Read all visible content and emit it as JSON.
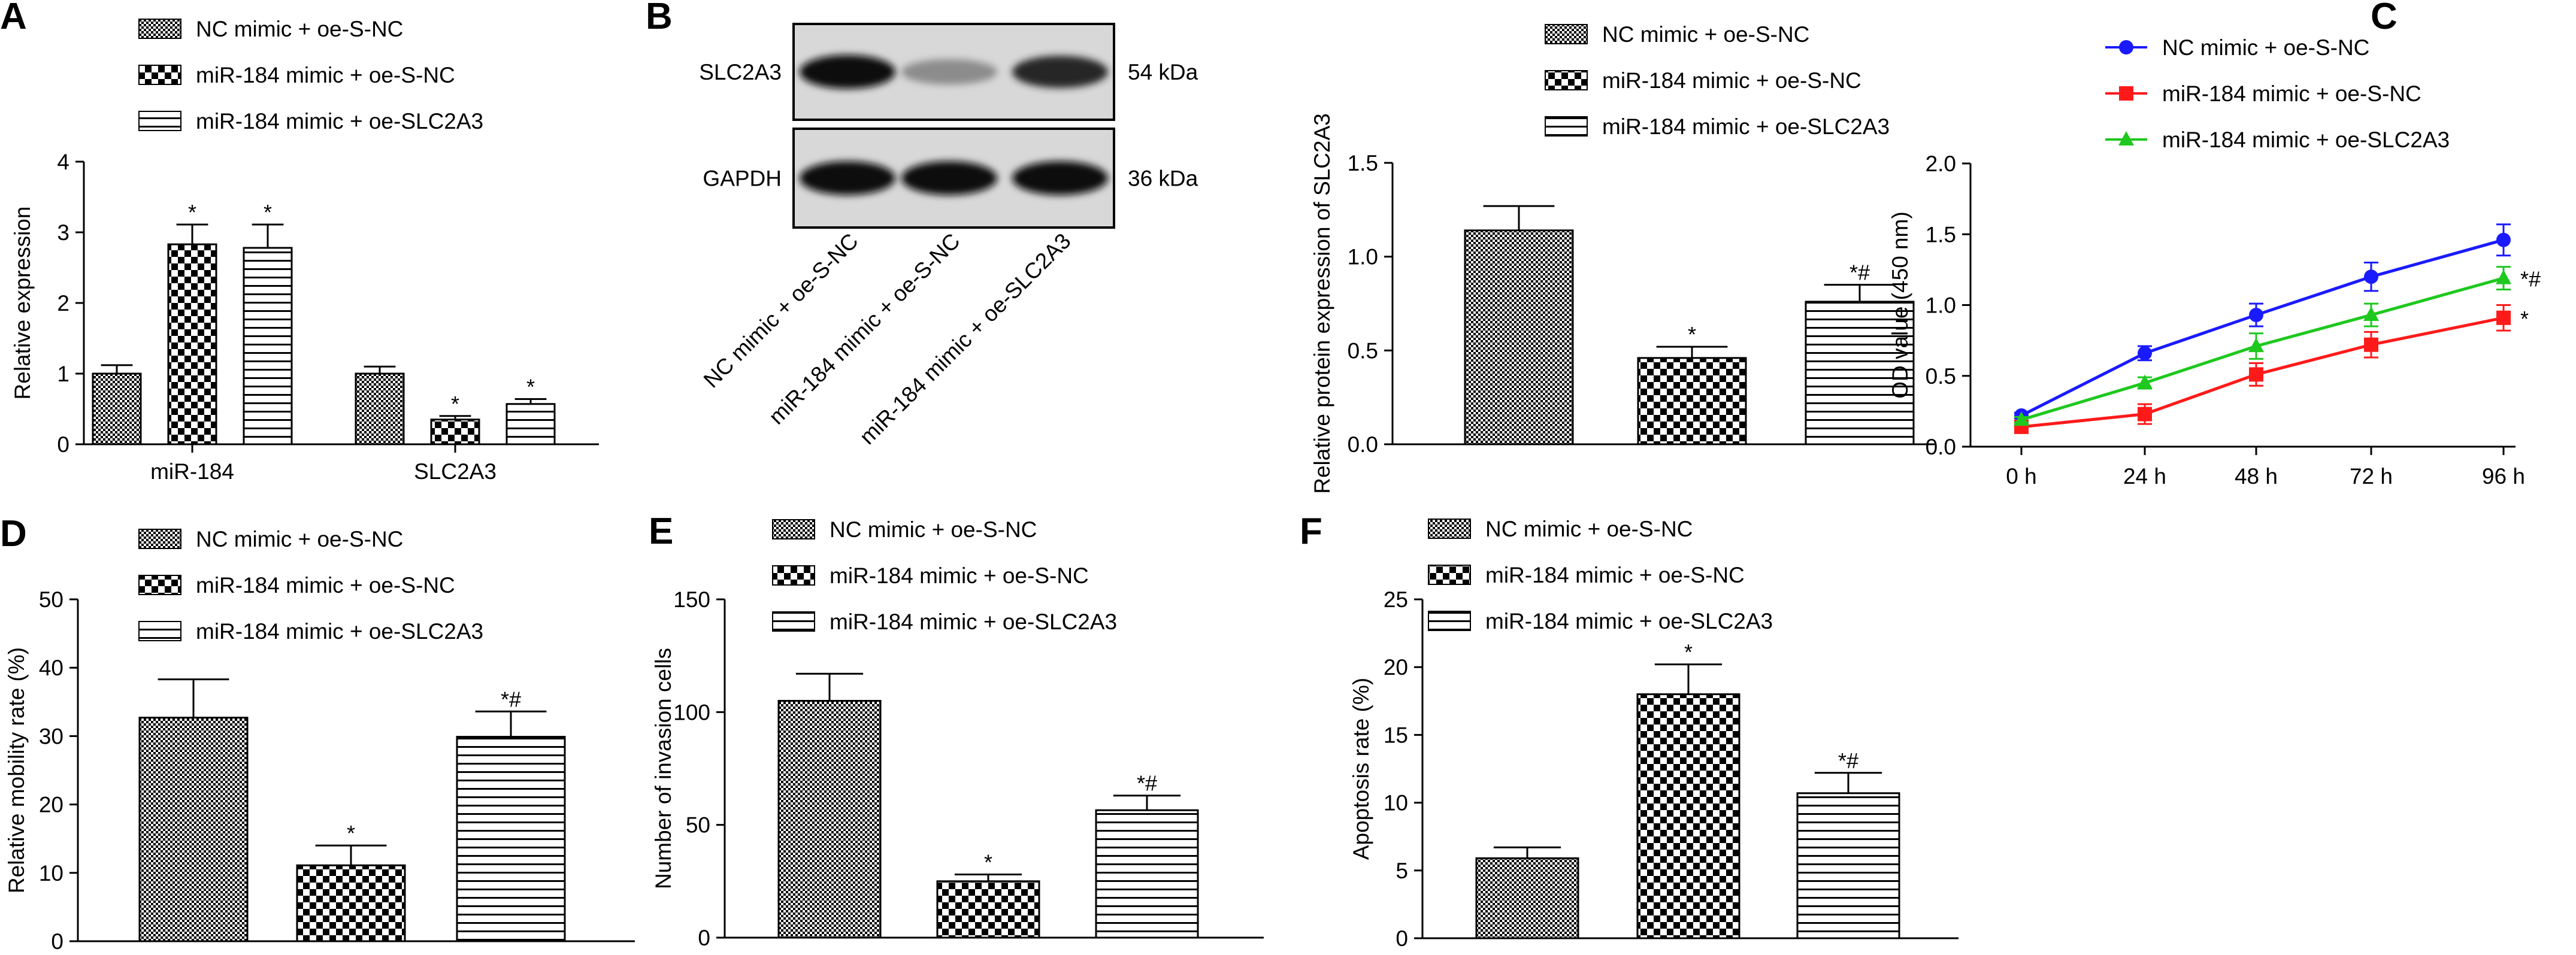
{
  "colors": {
    "accent_blue": "#1a1aff",
    "accent_red": "#ff1a1a",
    "accent_green": "#1ec81e"
  },
  "legend_labels": [
    "NC mimic + oe-S-NC",
    "miR-184 mimic + oe-S-NC",
    "miR-184 mimic + oe-SLC2A3"
  ],
  "blot": {
    "letter": "B",
    "rows": [
      "SLC2A3",
      "GAPDH"
    ],
    "sizes": [
      "54 kDa",
      "36 kDa"
    ],
    "lanes": [
      "NC mimic + oe-S-NC",
      "miR-184 mimic + oe-S-NC",
      "miR-184 mimic + oe-SLC2A3"
    ],
    "band_intensity": [
      [
        0.95,
        0.45,
        0.85
      ],
      [
        0.95,
        0.95,
        0.95
      ]
    ]
  },
  "chart_data": [
    {
      "id": "A",
      "type": "bar",
      "letter": "A",
      "categories": [
        "miR-184",
        "SLC2A3"
      ],
      "ylabel": "Relative expression",
      "ylim": [
        0,
        4
      ],
      "yticks": [
        0,
        1,
        2,
        3,
        4
      ],
      "series": [
        {
          "name": "NC mimic + oe-S-NC",
          "values": [
            1.0,
            1.0
          ],
          "errors": [
            0.12,
            0.1
          ],
          "marks": [
            "",
            ""
          ]
        },
        {
          "name": "miR-184 mimic + oe-S-NC",
          "values": [
            2.83,
            0.35
          ],
          "errors": [
            0.28,
            0.05
          ],
          "marks": [
            "*",
            "*"
          ]
        },
        {
          "name": "miR-184 mimic + oe-SLC2A3",
          "values": [
            2.78,
            0.57
          ],
          "errors": [
            0.33,
            0.07
          ],
          "marks": [
            "*",
            "*"
          ]
        }
      ]
    },
    {
      "id": "B",
      "type": "bar",
      "letter": "",
      "categories": [
        ""
      ],
      "ylabel": "Relative protein expression of SLC2A3",
      "ylim": [
        0,
        1.5
      ],
      "yticks": [
        0.0,
        0.5,
        1.0,
        1.5
      ],
      "series": [
        {
          "name": "NC mimic + oe-S-NC",
          "values": [
            1.14
          ],
          "errors": [
            0.13
          ],
          "marks": [
            ""
          ]
        },
        {
          "name": "miR-184 mimic + oe-S-NC",
          "values": [
            0.46
          ],
          "errors": [
            0.06
          ],
          "marks": [
            "*"
          ]
        },
        {
          "name": "miR-184 mimic + oe-SLC2A3",
          "values": [
            0.76
          ],
          "errors": [
            0.09
          ],
          "marks": [
            "*#"
          ]
        }
      ]
    },
    {
      "id": "C",
      "type": "line",
      "letter": "C",
      "x": [
        "0 h",
        "24 h",
        "48 h",
        "72 h",
        "96 h"
      ],
      "ylabel": "OD value (450 nm)",
      "ylim": [
        0,
        2.0
      ],
      "yticks": [
        0.0,
        0.5,
        1.0,
        1.5,
        2.0
      ],
      "series": [
        {
          "name": "NC mimic + oe-S-NC",
          "values": [
            0.22,
            0.66,
            0.93,
            1.2,
            1.46
          ],
          "errors": [
            0.02,
            0.05,
            0.08,
            0.1,
            0.11
          ],
          "mark": ""
        },
        {
          "name": "miR-184 mimic + oe-S-NC",
          "values": [
            0.14,
            0.23,
            0.51,
            0.72,
            0.91
          ],
          "errors": [
            0.02,
            0.07,
            0.08,
            0.09,
            0.09
          ],
          "mark": "*"
        },
        {
          "name": "miR-184 mimic + oe-SLC2A3",
          "values": [
            0.19,
            0.45,
            0.71,
            0.93,
            1.19
          ],
          "errors": [
            0.02,
            0.04,
            0.09,
            0.08,
            0.08
          ],
          "mark": "*#"
        }
      ]
    },
    {
      "id": "D",
      "type": "bar",
      "letter": "D",
      "categories": [
        ""
      ],
      "ylabel": "Relative mobility rate (%)",
      "ylim": [
        0,
        50
      ],
      "yticks": [
        0,
        10,
        20,
        30,
        40,
        50
      ],
      "series": [
        {
          "name": "NC mimic + oe-S-NC",
          "values": [
            32.7
          ],
          "errors": [
            5.6
          ],
          "marks": [
            ""
          ]
        },
        {
          "name": "miR-184 mimic + oe-S-NC",
          "values": [
            11.1
          ],
          "errors": [
            2.9
          ],
          "marks": [
            "*"
          ]
        },
        {
          "name": "miR-184 mimic + oe-SLC2A3",
          "values": [
            29.9
          ],
          "errors": [
            3.7
          ],
          "marks": [
            "*#"
          ]
        }
      ]
    },
    {
      "id": "E",
      "type": "bar",
      "letter": "E",
      "categories": [
        ""
      ],
      "ylabel": "Number of invasion cells",
      "ylim": [
        0,
        150
      ],
      "yticks": [
        0,
        50,
        100,
        150
      ],
      "series": [
        {
          "name": "NC mimic + oe-S-NC",
          "values": [
            105
          ],
          "errors": [
            12
          ],
          "marks": [
            ""
          ]
        },
        {
          "name": "miR-184 mimic + oe-S-NC",
          "values": [
            25
          ],
          "errors": [
            3
          ],
          "marks": [
            "*"
          ]
        },
        {
          "name": "miR-184 mimic + oe-SLC2A3",
          "values": [
            56.5
          ],
          "errors": [
            6.5
          ],
          "marks": [
            "*#"
          ]
        }
      ]
    },
    {
      "id": "F",
      "type": "bar",
      "letter": "F",
      "categories": [
        ""
      ],
      "ylabel": "Apoptosis rate (%)",
      "ylim": [
        0,
        25
      ],
      "yticks": [
        0,
        5,
        10,
        15,
        20,
        25
      ],
      "series": [
        {
          "name": "NC mimic + oe-S-NC",
          "values": [
            5.9
          ],
          "errors": [
            0.8
          ],
          "marks": [
            ""
          ]
        },
        {
          "name": "miR-184 mimic + oe-S-NC",
          "values": [
            18.0
          ],
          "errors": [
            2.2
          ],
          "marks": [
            "*"
          ]
        },
        {
          "name": "miR-184 mimic + oe-SLC2A3",
          "values": [
            10.7
          ],
          "errors": [
            1.5
          ],
          "marks": [
            "*#"
          ]
        }
      ]
    }
  ]
}
